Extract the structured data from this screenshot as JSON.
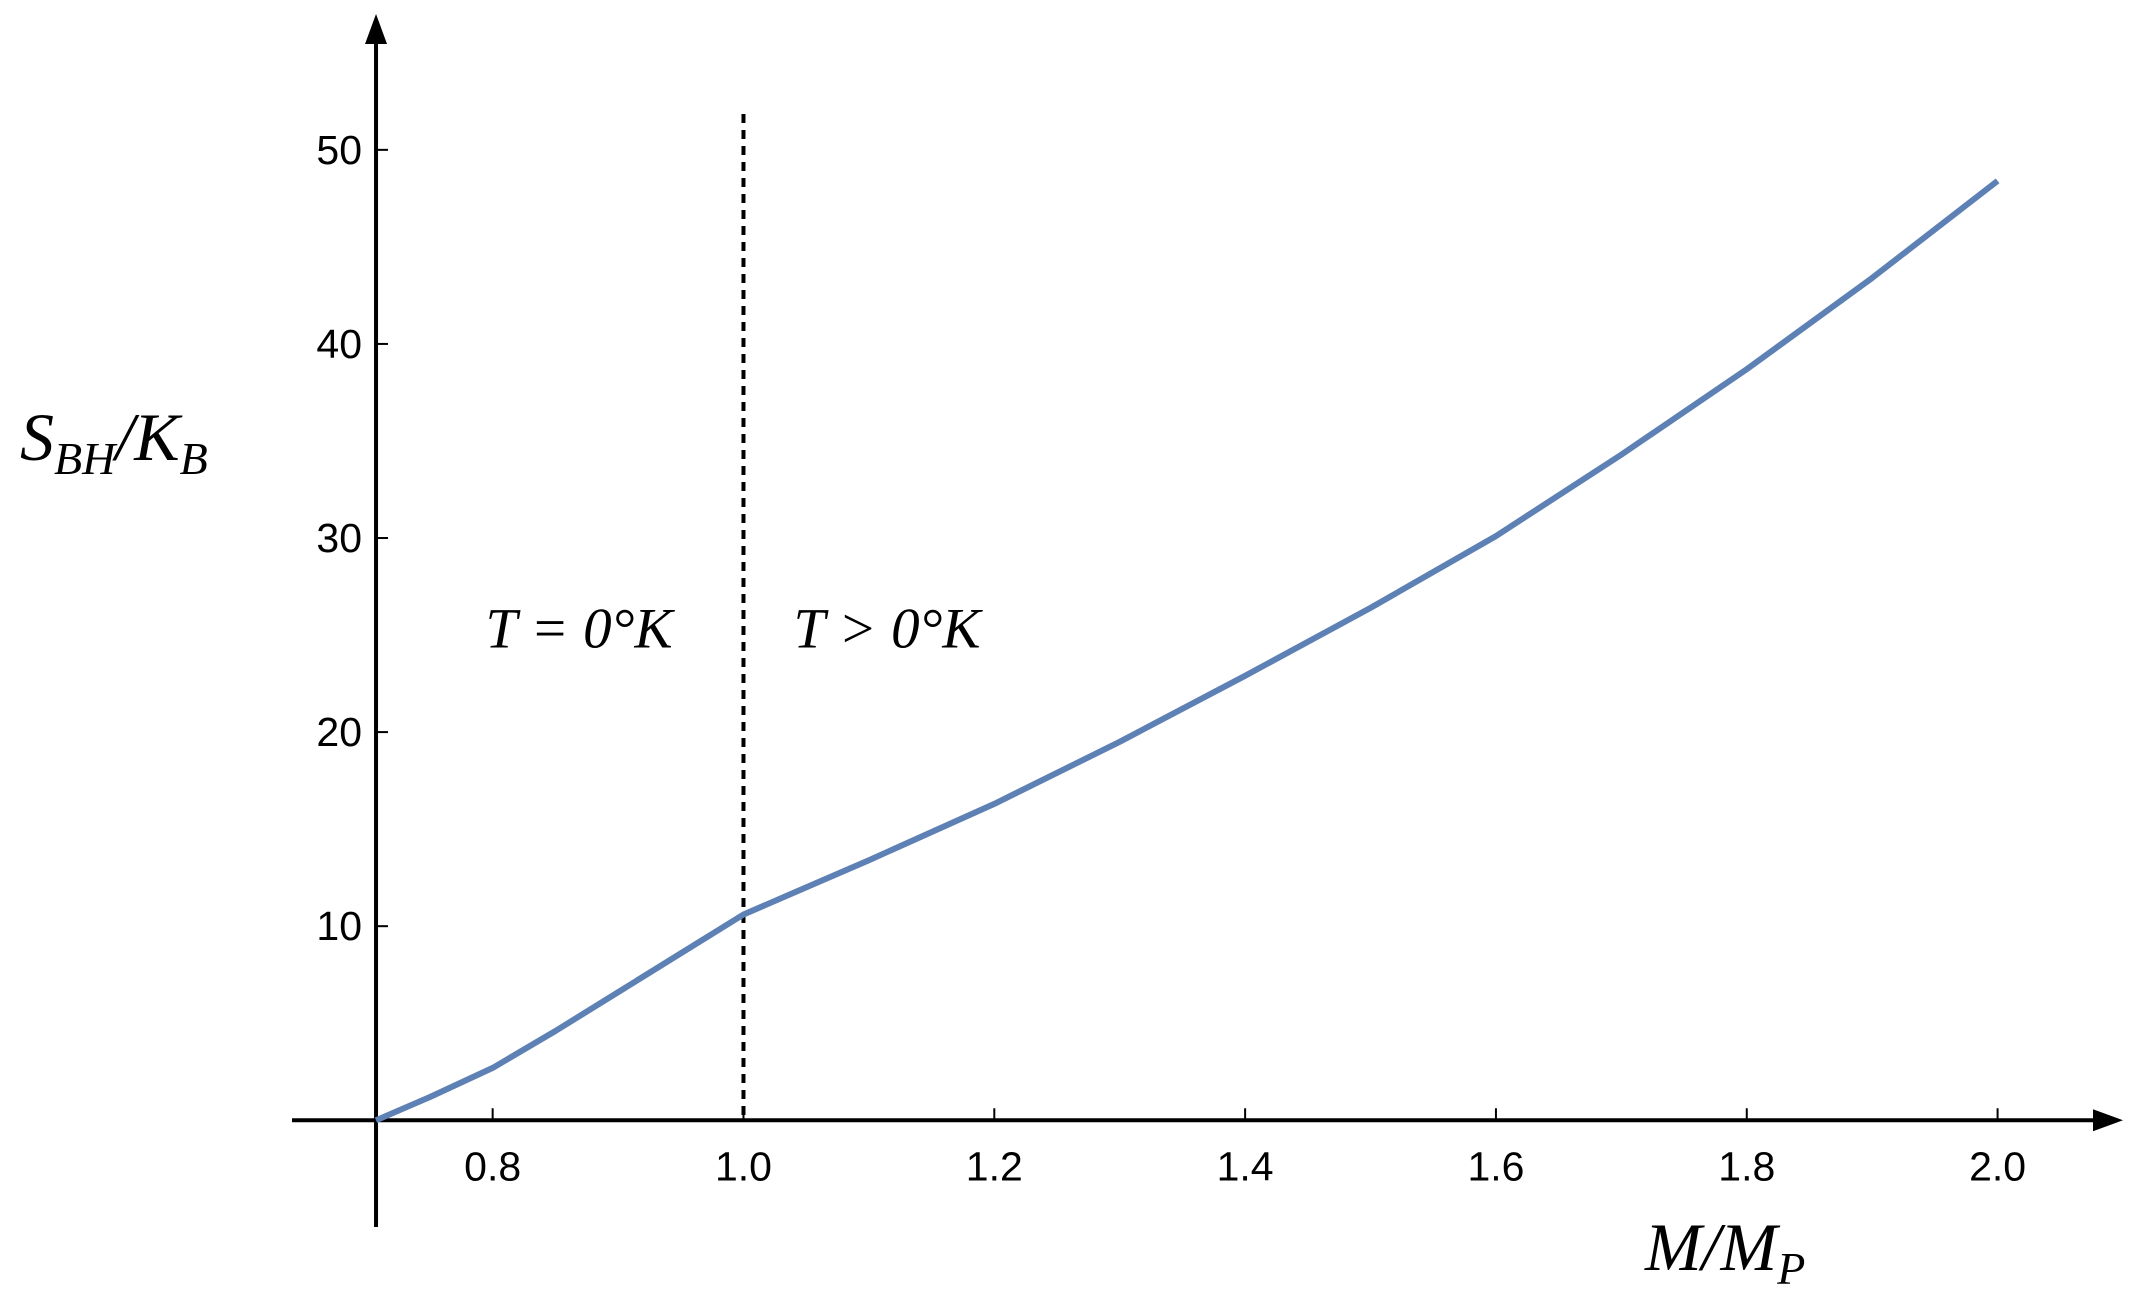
{
  "chart_data": {
    "type": "line",
    "ylabel": [
      "S",
      "BH",
      "/K",
      "B"
    ],
    "xlabel": [
      "M/M",
      "P"
    ],
    "annotations": [
      "T = 0°K",
      "T > 0°K"
    ],
    "vline": 1.0,
    "x": [
      0.707,
      0.75,
      0.8,
      0.85,
      0.9,
      0.95,
      1.0,
      1.1,
      1.2,
      1.3,
      1.4,
      1.5,
      1.6,
      1.7,
      1.8,
      1.9,
      2.0
    ],
    "series": [
      {
        "color": "#5e81b5",
        "values": [
          0,
          1.2,
          2.7,
          4.6,
          6.6,
          8.6,
          10.6,
          13.4,
          16.3,
          19.5,
          22.9,
          26.4,
          30.1,
          34.3,
          38.7,
          43.4,
          48.4
        ]
      }
    ],
    "xlim": [
      0.64,
      2.1
    ],
    "ylim": [
      -5.5,
      57
    ],
    "xticks": [
      0.8,
      {
        "value": 1,
        "label": "1.0"
      },
      1.2,
      1.4,
      1.6,
      1.8,
      {
        "value": 2,
        "label": "2.0"
      }
    ],
    "yticks": [
      10,
      20,
      30,
      40,
      50
    ]
  }
}
